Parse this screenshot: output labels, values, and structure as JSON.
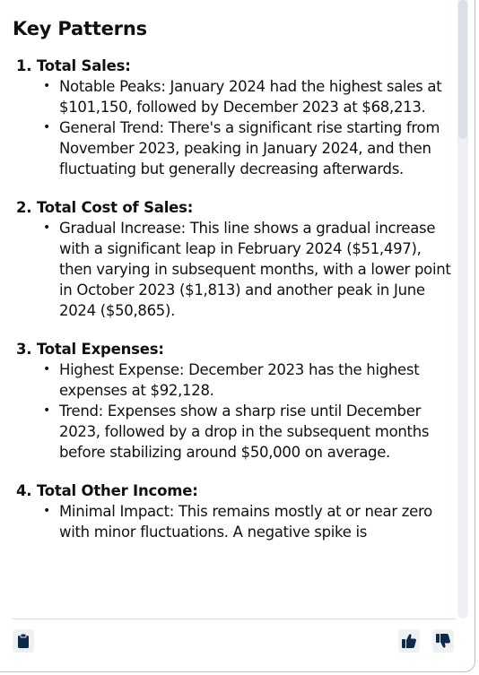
{
  "heading": "Key Patterns",
  "sections": [
    {
      "title": "1. Total Sales:",
      "bullets": [
        "Notable Peaks: January 2024 had the highest sales at $101,150, followed by December 2023 at $68,213.",
        "General Trend: There's a significant rise starting from November 2023, peaking in January 2024, and then fluctuating but generally decreasing afterwards."
      ]
    },
    {
      "title": "2. Total Cost of Sales:",
      "bullets": [
        "Gradual Increase: This line shows a gradual increase with a significant leap in February 2024 ($51,497), then varying in subsequent months, with a lower point in October 2023 ($1,813) and another peak in June 2024 ($50,865)."
      ]
    },
    {
      "title": "3. Total Expenses:",
      "bullets": [
        "Highest Expense: December 2023 has the highest expenses at $92,128.",
        "Trend: Expenses show a sharp rise until December 2023, followed by a drop in the subsequent months before stabilizing around $50,000 on average."
      ]
    },
    {
      "title": "4. Total Other Income:",
      "bullets": [
        "Minimal Impact: This remains mostly at or near zero with minor fluctuations. A negative spike is"
      ]
    }
  ],
  "footer": {
    "icons": [
      "clipboard-icon",
      "thumbs-up-icon",
      "thumbs-down-icon"
    ]
  },
  "colors": {
    "icon": "#0d2a4a",
    "border": "#b8c4cf"
  }
}
